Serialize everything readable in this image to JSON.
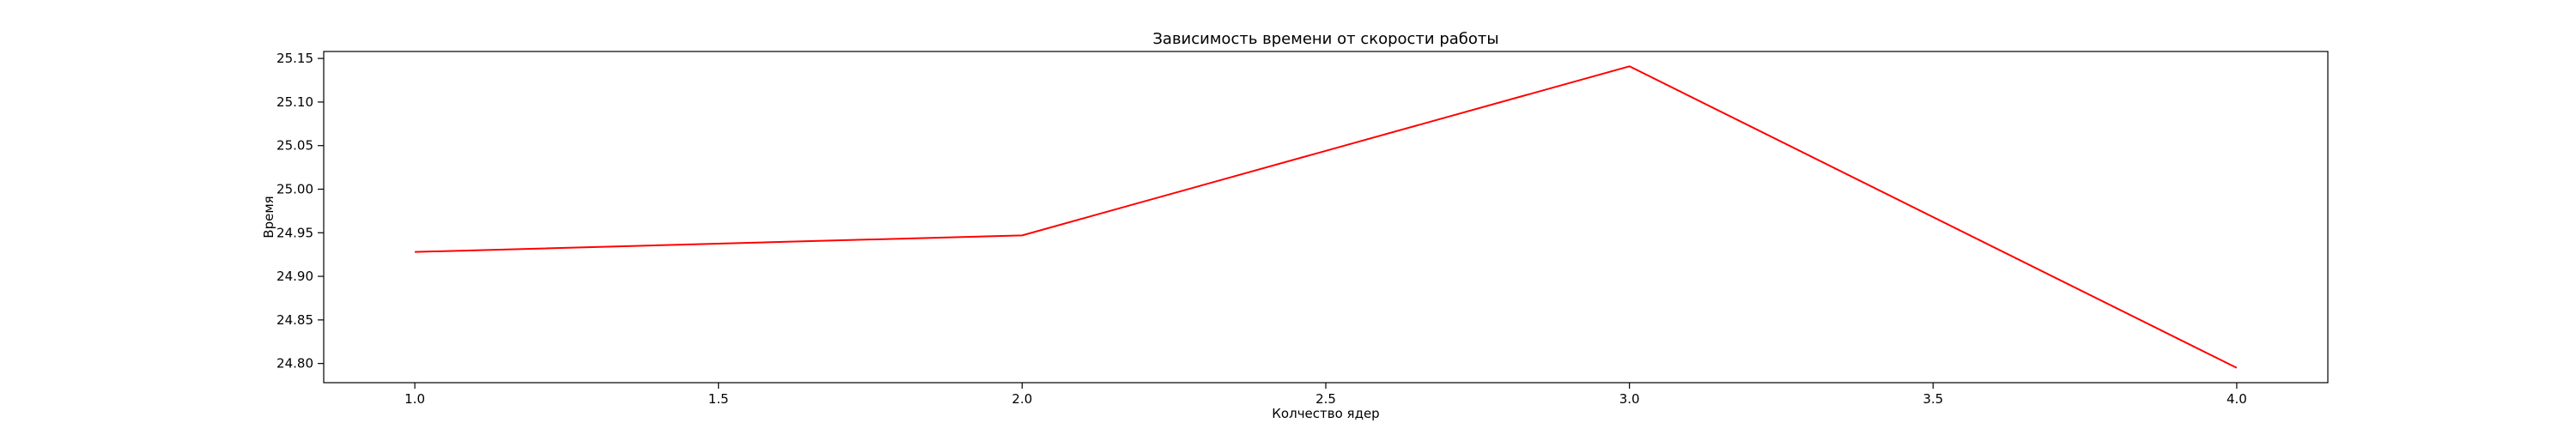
{
  "chart_data": {
    "type": "line",
    "title": "Зависимость времени от скорости работы",
    "xlabel": "Колчество ядер",
    "ylabel": "Время",
    "x": [
      1.0,
      2.0,
      3.0,
      4.0
    ],
    "series": [
      {
        "values": [
          24.928,
          24.947,
          25.141,
          24.795
        ],
        "color": "#ff0000"
      }
    ],
    "xlim": [
      0.85,
      4.15
    ],
    "ylim": [
      24.778,
      25.158
    ],
    "xticks": [
      1.0,
      1.5,
      2.0,
      2.5,
      3.0,
      3.5,
      4.0
    ],
    "xtick_labels": [
      "1.0",
      "1.5",
      "2.0",
      "2.5",
      "3.0",
      "3.5",
      "4.0"
    ],
    "yticks": [
      24.8,
      24.85,
      24.9,
      24.95,
      25.0,
      25.05,
      25.1,
      25.15
    ],
    "ytick_labels": [
      "24.80",
      "24.85",
      "24.90",
      "24.95",
      "25.00",
      "25.05",
      "25.10",
      "25.15"
    ],
    "grid": false,
    "legend": "none"
  }
}
